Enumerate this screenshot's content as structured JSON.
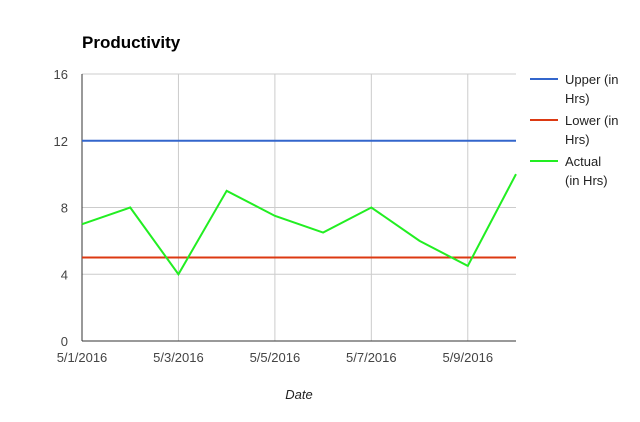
{
  "chart_data": {
    "type": "line",
    "title": "Productivity",
    "xlabel": "Date",
    "ylabel": "",
    "x": [
      "5/1/2016",
      "5/2/2016",
      "5/3/2016",
      "5/4/2016",
      "5/5/2016",
      "5/6/2016",
      "5/7/2016",
      "5/8/2016",
      "5/9/2016",
      "5/10/2016"
    ],
    "x_tick_labels": [
      "5/1/2016",
      "5/3/2016",
      "5/5/2016",
      "5/7/2016",
      "5/9/2016"
    ],
    "ylim": [
      0,
      16
    ],
    "y_ticks": [
      0,
      4,
      8,
      12,
      16
    ],
    "grid": true,
    "legend_position": "right",
    "series": [
      {
        "name": "Upper (in Hrs)",
        "color": "#3366cc",
        "values": [
          12,
          12,
          12,
          12,
          12,
          12,
          12,
          12,
          12,
          12
        ]
      },
      {
        "name": "Lower (in Hrs)",
        "color": "#dc3912",
        "values": [
          5,
          5,
          5,
          5,
          5,
          5,
          5,
          5,
          5,
          5
        ]
      },
      {
        "name": "Actual (in Hrs)",
        "color": "#22ee22",
        "values": [
          7,
          8,
          4,
          9,
          7.5,
          6.5,
          8,
          6,
          4.5,
          10
        ]
      }
    ]
  }
}
